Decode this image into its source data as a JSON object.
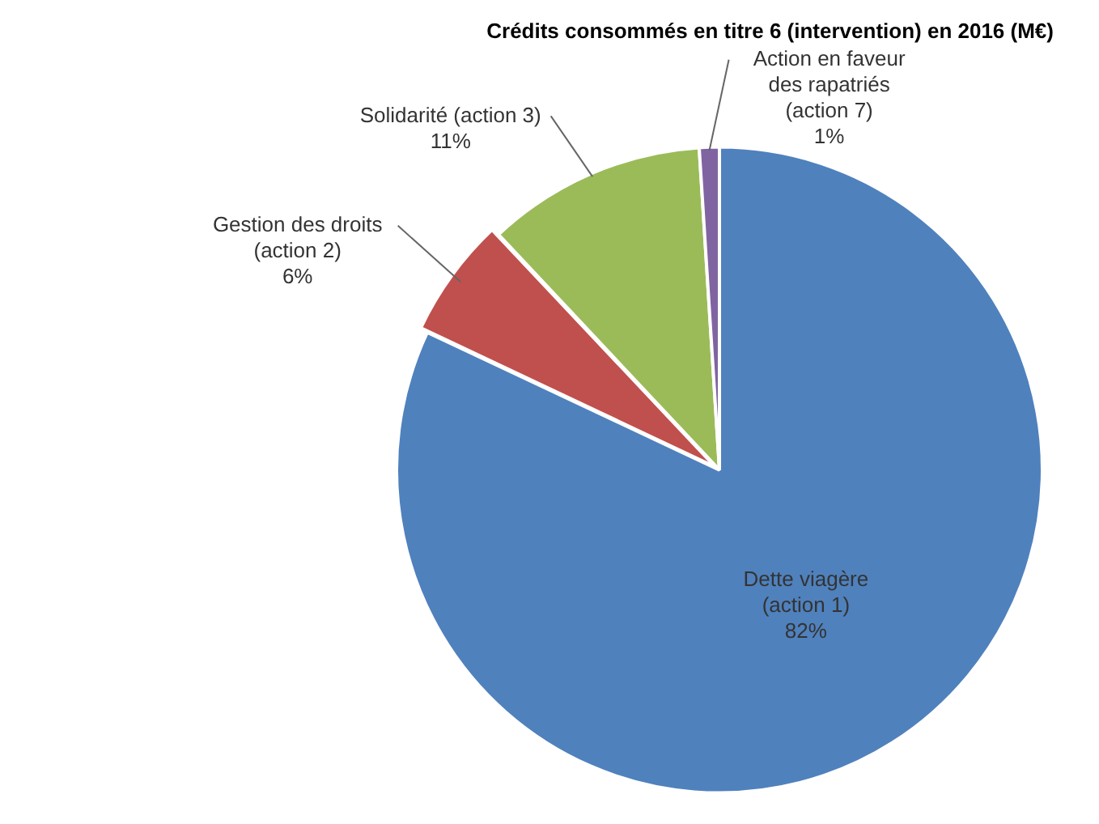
{
  "chart_data": {
    "type": "pie",
    "title": "Crédits consommés en titre 6 (intervention) en 2016 (M€)",
    "categories": [
      "Dette viagère (action 1)",
      "Gestion des droits (action 2)",
      "Solidarité (action 3)",
      "Action en faveur des rapatriés (action 7)"
    ],
    "values": [
      82,
      6,
      11,
      1
    ],
    "value_labels": [
      "82%",
      "6%",
      "11%",
      "1%"
    ],
    "colors": [
      "#4f81bd",
      "#c0504d",
      "#9bbb59",
      "#8064a2"
    ],
    "data_labels": true,
    "legend": false
  }
}
